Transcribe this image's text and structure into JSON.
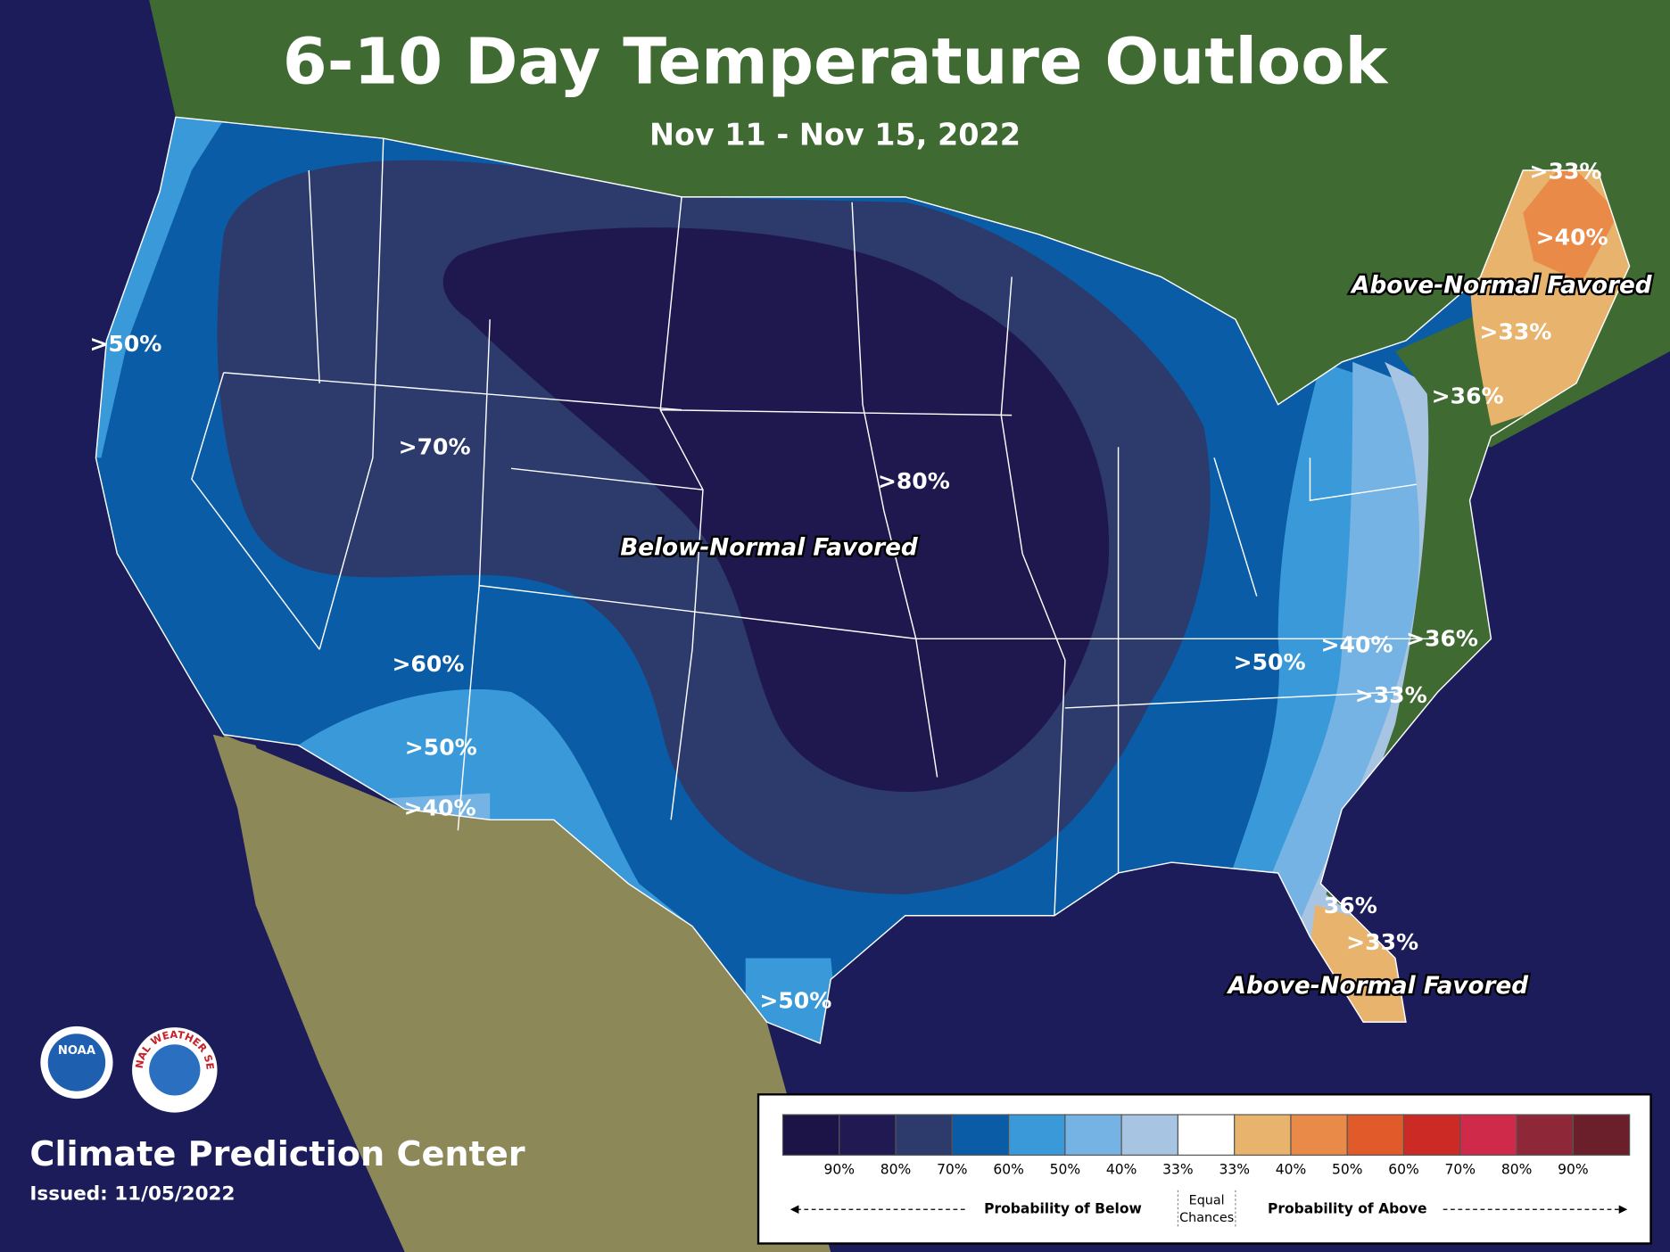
{
  "header": {
    "title": "6-10 Day Temperature Outlook",
    "subtitle": "Nov 11 - Nov 15, 2022"
  },
  "map": {
    "labels": [
      ">50%",
      ">70%",
      ">80%",
      "Below-Normal Favored",
      ">60%",
      ">50%",
      ">40%",
      ">50%",
      ">33%",
      ">40%",
      "Above-Normal Favored",
      ">33%",
      ">36%",
      ">50%",
      ">40%",
      ">36%",
      ">33%",
      "36%",
      ">33%",
      "Above-Normal Favored"
    ]
  },
  "logos": {
    "noaa": "NOAA",
    "nws": "NATIONAL WEATHER SERVICE"
  },
  "footer": {
    "center": "Climate Prediction Center",
    "issued": "Issued: 11/05/2022"
  },
  "legend": {
    "colors": [
      "#1c1446",
      "#211a52",
      "#2c3a6c",
      "#0a5ca6",
      "#3a9ad9",
      "#74b3e3",
      "#a7c5e3",
      "#ffffff",
      "#e8b36c",
      "#ea8a48",
      "#e05a2a",
      "#cc2a25",
      "#d02a4a",
      "#8e2838",
      "#6b1f2a"
    ],
    "labels": [
      "90%",
      "80%",
      "70%",
      "60%",
      "50%",
      "40%",
      "33%",
      "33%",
      "40%",
      "50%",
      "60%",
      "70%",
      "80%",
      "90%"
    ],
    "below": "Probability of Below",
    "equal": [
      "Equal",
      "Chances"
    ],
    "above": "Probability of Above"
  }
}
